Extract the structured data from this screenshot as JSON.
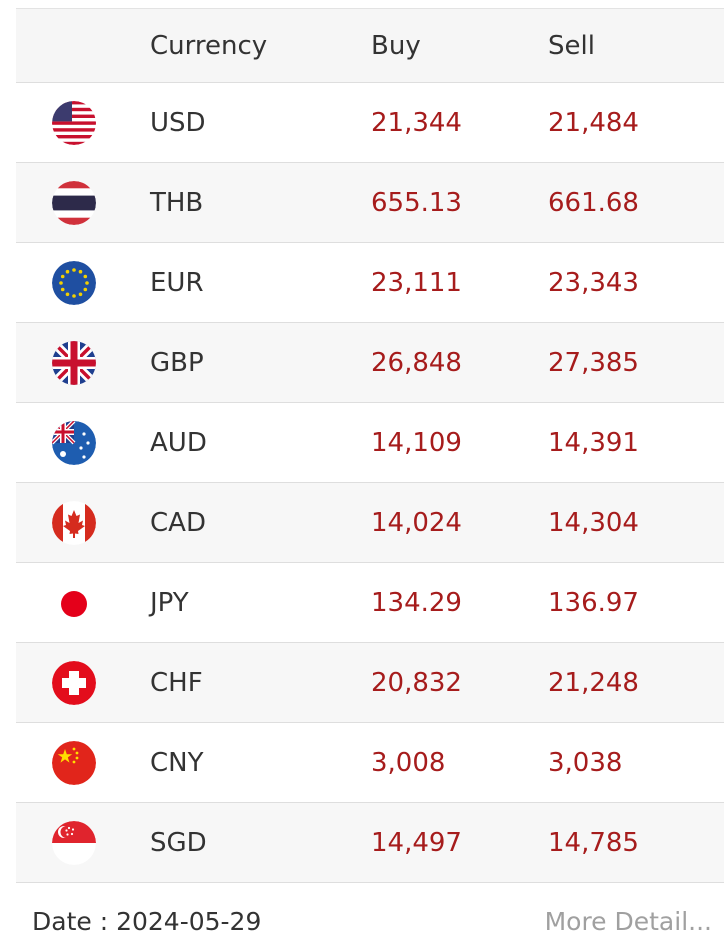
{
  "table": {
    "headers": {
      "currency": "Currency",
      "buy": "Buy",
      "sell": "Sell"
    },
    "rows": [
      {
        "flag_icon": "us-flag-icon",
        "currency": "USD",
        "buy": "21,344",
        "sell": "21,484"
      },
      {
        "flag_icon": "th-flag-icon",
        "currency": "THB",
        "buy": "655.13",
        "sell": "661.68"
      },
      {
        "flag_icon": "eu-flag-icon",
        "currency": "EUR",
        "buy": "23,111",
        "sell": "23,343"
      },
      {
        "flag_icon": "gb-flag-icon",
        "currency": "GBP",
        "buy": "26,848",
        "sell": "27,385"
      },
      {
        "flag_icon": "au-flag-icon",
        "currency": "AUD",
        "buy": "14,109",
        "sell": "14,391"
      },
      {
        "flag_icon": "ca-flag-icon",
        "currency": "CAD",
        "buy": "14,024",
        "sell": "14,304"
      },
      {
        "flag_icon": "jp-flag-icon",
        "currency": "JPY",
        "buy": "134.29",
        "sell": "136.97"
      },
      {
        "flag_icon": "ch-flag-icon",
        "currency": "CHF",
        "buy": "20,832",
        "sell": "21,248"
      },
      {
        "flag_icon": "cn-flag-icon",
        "currency": "CNY",
        "buy": "3,008",
        "sell": "3,038"
      },
      {
        "flag_icon": "sg-flag-icon",
        "currency": "SGD",
        "buy": "14,497",
        "sell": "14,785"
      }
    ]
  },
  "footer": {
    "date_label": "Date : ",
    "date_value": "2024-05-29",
    "more_link": "More Detail..."
  },
  "colors": {
    "rate_text": "#a61c1c",
    "link_text": "#a0a0a0",
    "row_alt_bg": "#f7f7f7",
    "divider": "#dedede"
  }
}
